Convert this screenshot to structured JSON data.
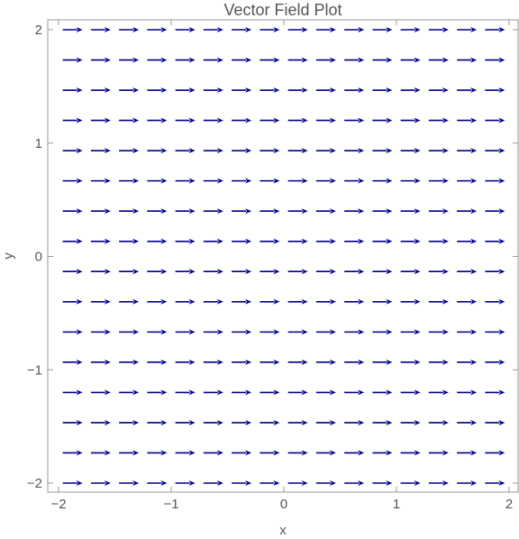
{
  "chart_data": {
    "type": "vector_field",
    "title": "Vector Field Plot",
    "xlabel": "x",
    "ylabel": "y",
    "xlim": [
      -2,
      2
    ],
    "ylim": [
      -2,
      2
    ],
    "x_ticks": [
      -2,
      -1,
      0,
      1,
      2
    ],
    "y_ticks": [
      -2,
      -1,
      0,
      1,
      2
    ],
    "x_tick_labels": [
      "−2",
      "−1",
      "0",
      "1",
      "2"
    ],
    "y_tick_labels": [
      "−2",
      "−1",
      "0",
      "1",
      "2"
    ],
    "grid_x": [
      -1.875,
      -1.625,
      -1.375,
      -1.125,
      -0.875,
      -0.625,
      -0.375,
      -0.125,
      0.125,
      0.375,
      0.625,
      0.875,
      1.125,
      1.375,
      1.625,
      1.875
    ],
    "grid_y": [
      -2.0,
      -1.733,
      -1.467,
      -1.2,
      -0.933,
      -0.667,
      -0.4,
      -0.133,
      0.133,
      0.4,
      0.667,
      0.933,
      1.2,
      1.467,
      1.733,
      2.0
    ],
    "vector": [
      1,
      0
    ],
    "arrow_color": "#00008b",
    "grid": false
  }
}
